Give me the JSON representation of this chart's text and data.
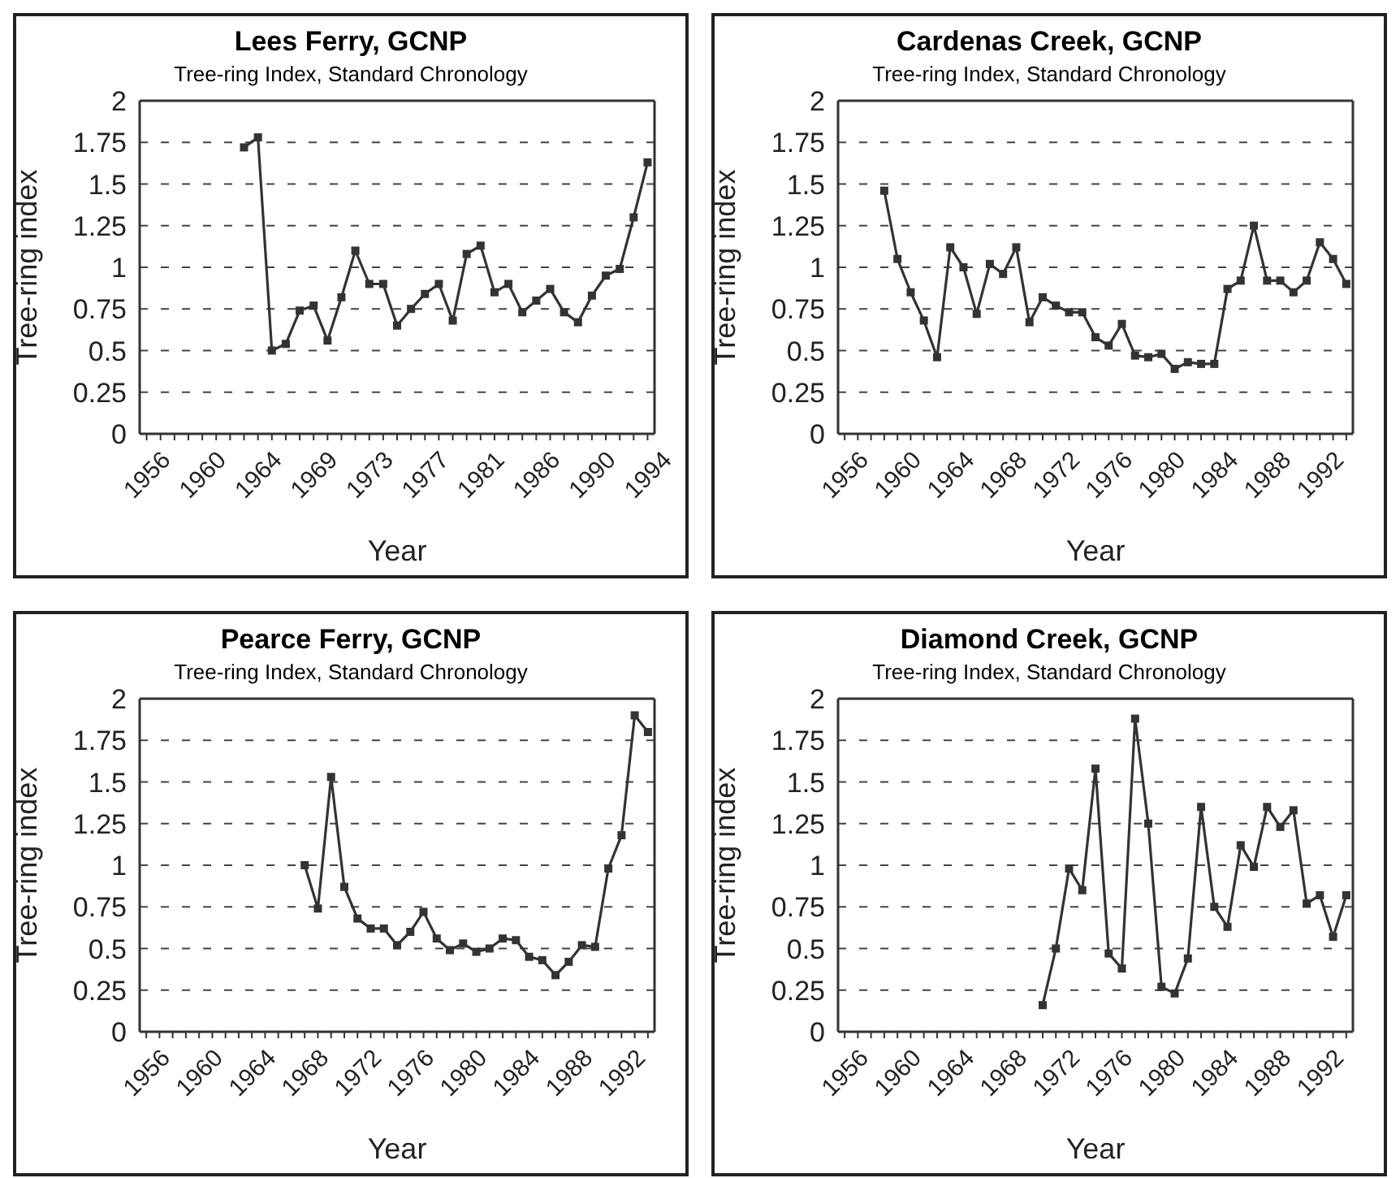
{
  "chart_data": [
    {
      "type": "line",
      "title": "Lees Ferry, GCNP",
      "subtitle": "Tree-ring Index, Standard Chronology",
      "xlabel": "Year",
      "ylabel": "Tree-ring index",
      "categories": [
        "1956",
        null,
        null,
        null,
        "1960",
        null,
        null,
        null,
        "1964",
        null,
        null,
        null,
        "1969",
        null,
        null,
        null,
        "1973",
        null,
        null,
        null,
        "1977",
        null,
        null,
        null,
        "1981",
        null,
        null,
        null,
        "1986",
        null,
        null,
        null,
        "1990",
        null,
        null,
        null,
        "1994"
      ],
      "series": [
        {
          "color": "#333333",
          "values": [
            null,
            null,
            null,
            null,
            null,
            null,
            null,
            1.72,
            1.78,
            0.5,
            0.54,
            0.74,
            0.77,
            0.56,
            0.82,
            1.1,
            0.9,
            0.9,
            0.65,
            0.75,
            0.84,
            0.9,
            0.68,
            1.08,
            1.13,
            0.85,
            0.9,
            0.73,
            0.8,
            0.87,
            0.73,
            0.67,
            0.83,
            0.95,
            0.99,
            1.3,
            1.63
          ]
        }
      ],
      "ylim": [
        0,
        2
      ],
      "yticks": [
        0,
        0.25,
        0.5,
        0.75,
        1,
        1.25,
        1.5,
        1.75,
        2
      ],
      "grid": "y",
      "marker": "square",
      "line_style": "solid"
    },
    {
      "type": "line",
      "title": "Cardenas Creek, GCNP",
      "subtitle": "Tree-ring Index, Standard Chronology",
      "xlabel": "Year",
      "ylabel": "Tree-ring index",
      "categories": [
        "1956",
        null,
        null,
        null,
        "1960",
        null,
        null,
        null,
        "1964",
        null,
        null,
        null,
        "1968",
        null,
        null,
        null,
        "1972",
        null,
        null,
        null,
        "1976",
        null,
        null,
        null,
        "1980",
        null,
        null,
        null,
        "1984",
        null,
        null,
        null,
        "1988",
        null,
        null,
        null,
        "1992",
        null,
        null
      ],
      "series": [
        {
          "color": "#333333",
          "values": [
            null,
            null,
            null,
            1.46,
            1.05,
            0.85,
            0.68,
            0.46,
            1.12,
            1.0,
            0.72,
            1.02,
            0.96,
            1.12,
            0.67,
            0.82,
            0.77,
            0.73,
            0.73,
            0.58,
            0.53,
            0.66,
            0.47,
            0.46,
            0.48,
            0.39,
            0.43,
            0.42,
            0.42,
            0.87,
            0.92,
            1.25,
            0.92,
            0.92,
            0.85,
            0.92,
            1.15,
            1.05,
            0.9
          ]
        }
      ],
      "ylim": [
        0,
        2
      ],
      "yticks": [
        0,
        0.25,
        0.5,
        0.75,
        1,
        1.25,
        1.5,
        1.75,
        2
      ],
      "grid": "y",
      "marker": "square",
      "line_style": "solid"
    },
    {
      "type": "line",
      "title": "Pearce Ferry, GCNP",
      "subtitle": "Tree-ring Index, Standard Chronology",
      "xlabel": "Year",
      "ylabel": "Tree-ring index",
      "categories": [
        "1956",
        null,
        null,
        null,
        "1960",
        null,
        null,
        null,
        "1964",
        null,
        null,
        null,
        "1968",
        null,
        null,
        null,
        "1972",
        null,
        null,
        null,
        "1976",
        null,
        null,
        null,
        "1980",
        null,
        null,
        null,
        "1984",
        null,
        null,
        null,
        "1988",
        null,
        null,
        null,
        "1992",
        null,
        null
      ],
      "series": [
        {
          "color": "#333333",
          "values": [
            null,
            null,
            null,
            null,
            null,
            null,
            null,
            null,
            null,
            null,
            null,
            null,
            1.0,
            0.74,
            1.53,
            0.87,
            0.68,
            0.62,
            0.62,
            0.52,
            0.6,
            0.72,
            0.56,
            0.49,
            0.53,
            0.48,
            0.5,
            0.56,
            0.55,
            0.45,
            0.43,
            0.34,
            0.42,
            0.52,
            0.51,
            0.98,
            1.18,
            1.9,
            1.8
          ]
        }
      ],
      "ylim": [
        0,
        2
      ],
      "yticks": [
        0,
        0.25,
        0.5,
        0.75,
        1,
        1.25,
        1.5,
        1.75,
        2
      ],
      "grid": "y",
      "marker": "square",
      "line_style": "solid"
    },
    {
      "type": "line",
      "title": "Diamond Creek, GCNP",
      "subtitle": "Tree-ring Index, Standard Chronology",
      "xlabel": "Year",
      "ylabel": "Tree-ring index",
      "categories": [
        "1956",
        null,
        null,
        null,
        "1960",
        null,
        null,
        null,
        "1964",
        null,
        null,
        null,
        "1968",
        null,
        null,
        null,
        "1972",
        null,
        null,
        null,
        "1976",
        null,
        null,
        null,
        "1980",
        null,
        null,
        null,
        "1984",
        null,
        null,
        null,
        "1988",
        null,
        null,
        null,
        "1992",
        null,
        null
      ],
      "series": [
        {
          "color": "#333333",
          "values": [
            null,
            null,
            null,
            null,
            null,
            null,
            null,
            null,
            null,
            null,
            null,
            null,
            null,
            null,
            null,
            0.16,
            0.5,
            0.98,
            0.85,
            1.58,
            0.47,
            0.38,
            1.88,
            1.25,
            0.27,
            0.23,
            0.44,
            1.35,
            0.75,
            0.63,
            1.12,
            0.99,
            1.35,
            1.23,
            1.33,
            0.77,
            0.82,
            0.57,
            0.82
          ]
        }
      ],
      "ylim": [
        0,
        2
      ],
      "yticks": [
        0,
        0.25,
        0.5,
        0.75,
        1,
        1.25,
        1.5,
        1.75,
        2
      ],
      "grid": "y",
      "marker": "square",
      "line_style": "solid"
    }
  ]
}
